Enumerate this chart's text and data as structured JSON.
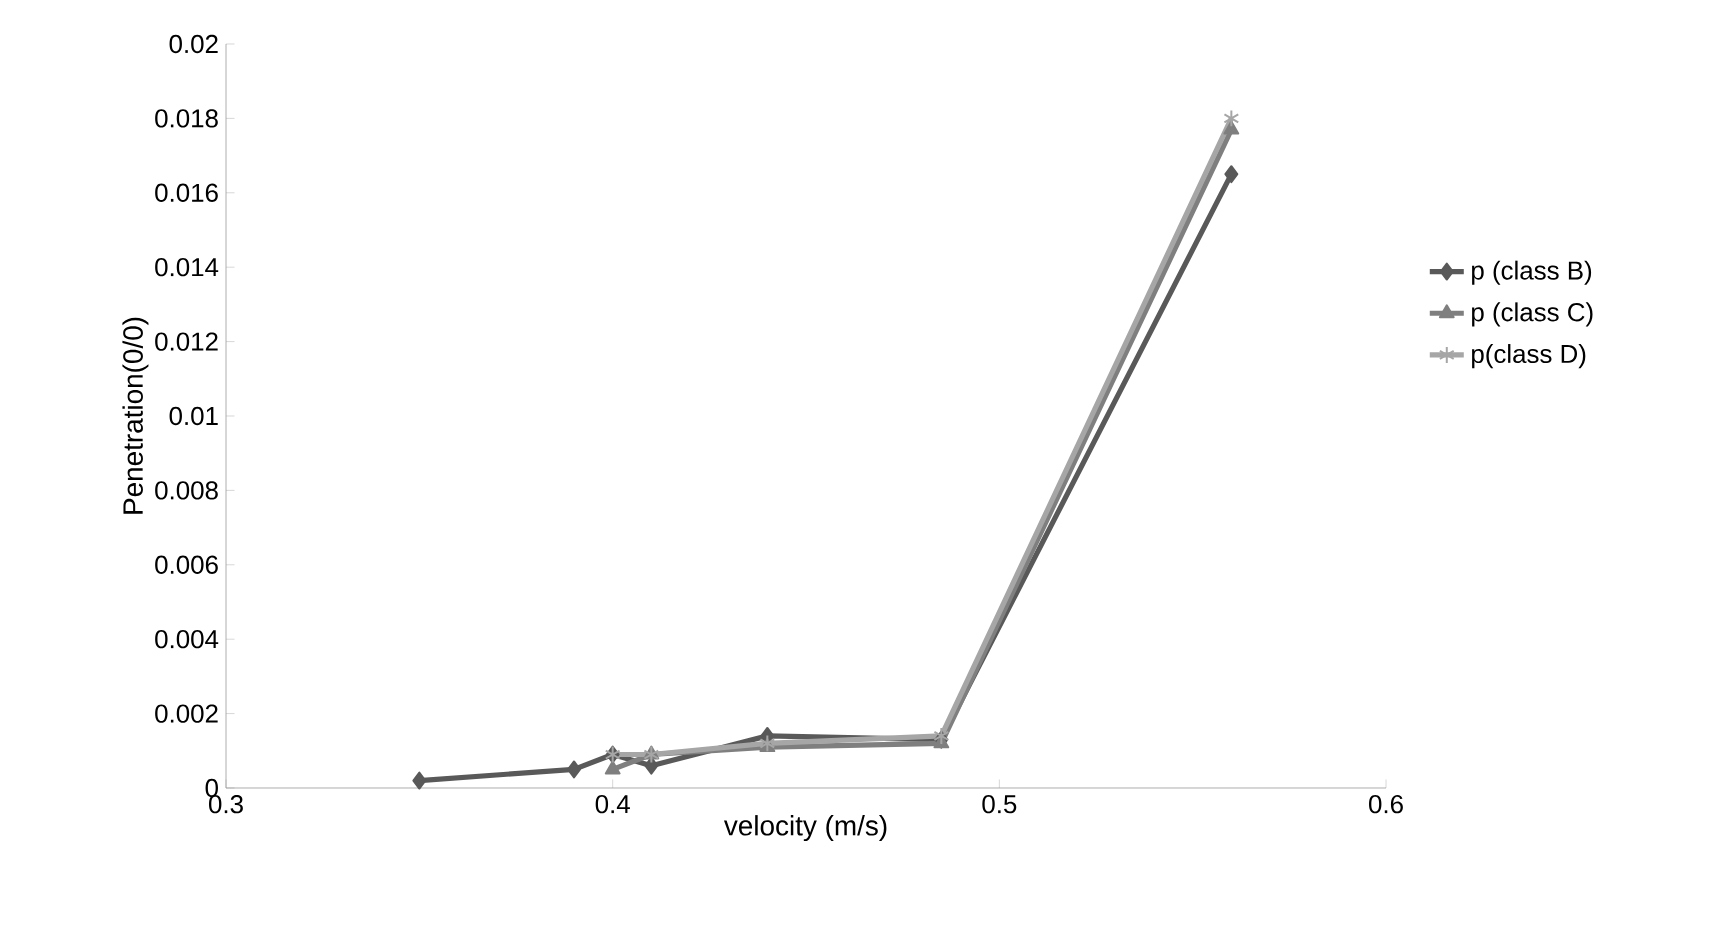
{
  "chart_data": {
    "type": "line",
    "xlabel": "velocity (m/s)",
    "ylabel": "Penetration(0/0)",
    "xlim": [
      0.3,
      0.6
    ],
    "xticks": [
      0.3,
      0.4,
      0.5,
      0.6
    ],
    "ylim": [
      0,
      0.02
    ],
    "yticks": [
      0,
      0.002,
      0.004,
      0.006,
      0.008,
      0.01,
      0.012,
      0.014,
      0.016,
      0.018,
      0.02
    ],
    "grid": false,
    "legend": "right",
    "line_style": "solid",
    "series": [
      {
        "name": "p (class B)",
        "color": "#595959",
        "marker": "diamond",
        "x": [
          0.35,
          0.39,
          0.4,
          0.41,
          0.44,
          0.485,
          0.56
        ],
        "values": [
          0.0002,
          0.0005,
          0.0009,
          0.0006,
          0.0014,
          0.0013,
          0.0165
        ]
      },
      {
        "name": "p (class C)",
        "color": "#7f7f7f",
        "marker": "triangle",
        "x": [
          0.4,
          0.41,
          0.44,
          0.485,
          0.56
        ],
        "values": [
          0.0005,
          0.0009,
          0.0011,
          0.0012,
          0.0177
        ]
      },
      {
        "name": "p(class D)",
        "color": "#a6a6a6",
        "marker": "cross",
        "x": [
          0.4,
          0.41,
          0.44,
          0.485,
          0.56
        ],
        "values": [
          0.0009,
          0.0009,
          0.0012,
          0.0014,
          0.018
        ]
      }
    ]
  }
}
